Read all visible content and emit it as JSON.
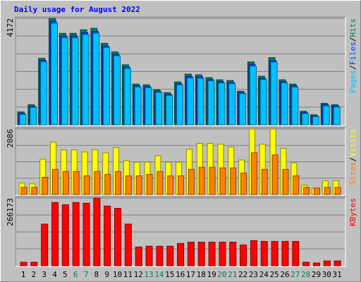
{
  "title": "Daily usage for August 2022",
  "legend_separator": "/",
  "chart_data": [
    {
      "type": "bar",
      "ylim": [
        0,
        4172
      ],
      "yticks": [
        4172
      ],
      "series": [
        {
          "name": "Hits",
          "color": "#00805c",
          "values": [
            504,
            784,
            2604,
            4172,
            3584,
            3584,
            3724,
            3780,
            3192,
            2856,
            2352,
            1596,
            1568,
            1372,
            1260,
            1680,
            1988,
            1960,
            1848,
            1764,
            1736,
            1316,
            2464,
            1904,
            2632,
            1764,
            1596,
            532,
            392,
            840,
            784
          ]
        },
        {
          "name": "Files",
          "color": "#0040ff",
          "values": [
            450,
            720,
            2530,
            4060,
            3480,
            3480,
            3610,
            3660,
            3090,
            2760,
            2270,
            1530,
            1500,
            1310,
            1200,
            1610,
            1900,
            1880,
            1770,
            1690,
            1660,
            1260,
            2370,
            1820,
            2520,
            1690,
            1530,
            480,
            350,
            790,
            740
          ]
        },
        {
          "name": "Pages",
          "color": "#00c0ff",
          "values": [
            400,
            680,
            2470,
            3980,
            3410,
            3410,
            3540,
            3590,
            3030,
            2700,
            2210,
            1480,
            1450,
            1270,
            1150,
            1560,
            1830,
            1820,
            1720,
            1640,
            1610,
            1220,
            2300,
            1770,
            2450,
            1640,
            1480,
            440,
            320,
            740,
            700
          ]
        }
      ]
    },
    {
      "type": "bar",
      "ylim": [
        0,
        2086
      ],
      "yticks": [
        2086
      ],
      "series": [
        {
          "name": "Visits",
          "color": "#ffff00",
          "values": [
            367,
            344,
            1123,
            1673,
            1421,
            1421,
            1352,
            1421,
            1329,
            1490,
            1077,
            1031,
            1031,
            1238,
            1031,
            1031,
            1444,
            1627,
            1627,
            1604,
            1513,
            1100,
            2086,
            1604,
            2086,
            1467,
            1008,
            298,
            206,
            436,
            436
          ]
        },
        {
          "name": "Sites",
          "color": "#ff8000",
          "values": [
            229,
            229,
            550,
            802,
            734,
            734,
            596,
            734,
            642,
            734,
            596,
            596,
            642,
            734,
            596,
            596,
            802,
            871,
            871,
            848,
            848,
            688,
            1329,
            802,
            1260,
            802,
            596,
            229,
            206,
            229,
            229
          ]
        }
      ]
    },
    {
      "type": "bar",
      "ylim": [
        0,
        266173
      ],
      "yticks": [
        266173
      ],
      "categories": [
        "1",
        "2",
        "3",
        "4",
        "5",
        "6",
        "7",
        "8",
        "9",
        "10",
        "11",
        "12",
        "13",
        "14",
        "15",
        "16",
        "17",
        "18",
        "19",
        "20",
        "21",
        "22",
        "23",
        "24",
        "25",
        "26",
        "27",
        "28",
        "29",
        "30",
        "31"
      ],
      "category_colors": [
        "#000000",
        "#000000",
        "#000000",
        "#000000",
        "#000000",
        "#00805c",
        "#00805c",
        "#000000",
        "#000000",
        "#000000",
        "#000000",
        "#000000",
        "#00805c",
        "#00805c",
        "#000000",
        "#000000",
        "#000000",
        "#000000",
        "#000000",
        "#00805c",
        "#00805c",
        "#000000",
        "#000000",
        "#000000",
        "#000000",
        "#000000",
        "#00805c",
        "#00805c",
        "#000000",
        "#000000",
        "#000000"
      ],
      "series": [
        {
          "name": "KBytes",
          "color": "#ff0000",
          "values": [
            14000,
            14000,
            164000,
            249000,
            240000,
            249000,
            246000,
            266173,
            235000,
            226000,
            164000,
            74000,
            77000,
            77000,
            77000,
            88000,
            93000,
            93000,
            93000,
            93000,
            93000,
            82000,
            99000,
            96000,
            96000,
            96000,
            96000,
            14000,
            11000,
            19000,
            19000
          ]
        }
      ]
    }
  ]
}
